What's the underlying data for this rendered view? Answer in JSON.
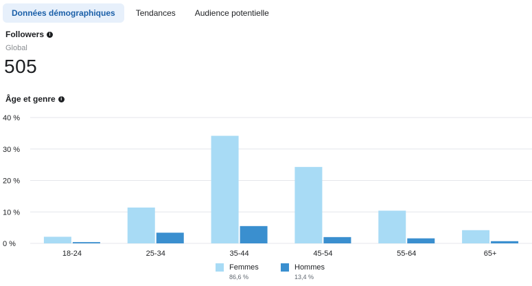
{
  "tabs": [
    {
      "label": "Données démographiques",
      "active": true
    },
    {
      "label": "Tendances",
      "active": false
    },
    {
      "label": "Audience potentielle",
      "active": false
    }
  ],
  "followers": {
    "title": "Followers",
    "scope": "Global",
    "count": "505"
  },
  "age_gender": {
    "title": "Âge et genre"
  },
  "colors": {
    "femmes": "#a8dbf5",
    "hommes": "#3a8fcf",
    "gridline": "#e4e6eb",
    "active_tab_bg": "#e7f0fb",
    "active_tab_text": "#1a5fa8"
  },
  "legend": [
    {
      "name": "Femmes",
      "share": "86,6 %"
    },
    {
      "name": "Hommes",
      "share": "13,4 %"
    }
  ],
  "chart_data": {
    "type": "bar",
    "categories": [
      "18-24",
      "25-34",
      "35-44",
      "45-54",
      "55-64",
      "65+"
    ],
    "series": [
      {
        "name": "Femmes",
        "values": [
          2.1,
          11.4,
          34.2,
          24.3,
          10.4,
          4.2
        ]
      },
      {
        "name": "Hommes",
        "values": [
          0.4,
          3.4,
          5.5,
          2.0,
          1.6,
          0.7
        ]
      }
    ],
    "yticks": [
      "0 %",
      "10 %",
      "20 %",
      "30 %",
      "40 %"
    ],
    "ylim": [
      0,
      40
    ],
    "grid": true,
    "legend_position": "bottom"
  }
}
